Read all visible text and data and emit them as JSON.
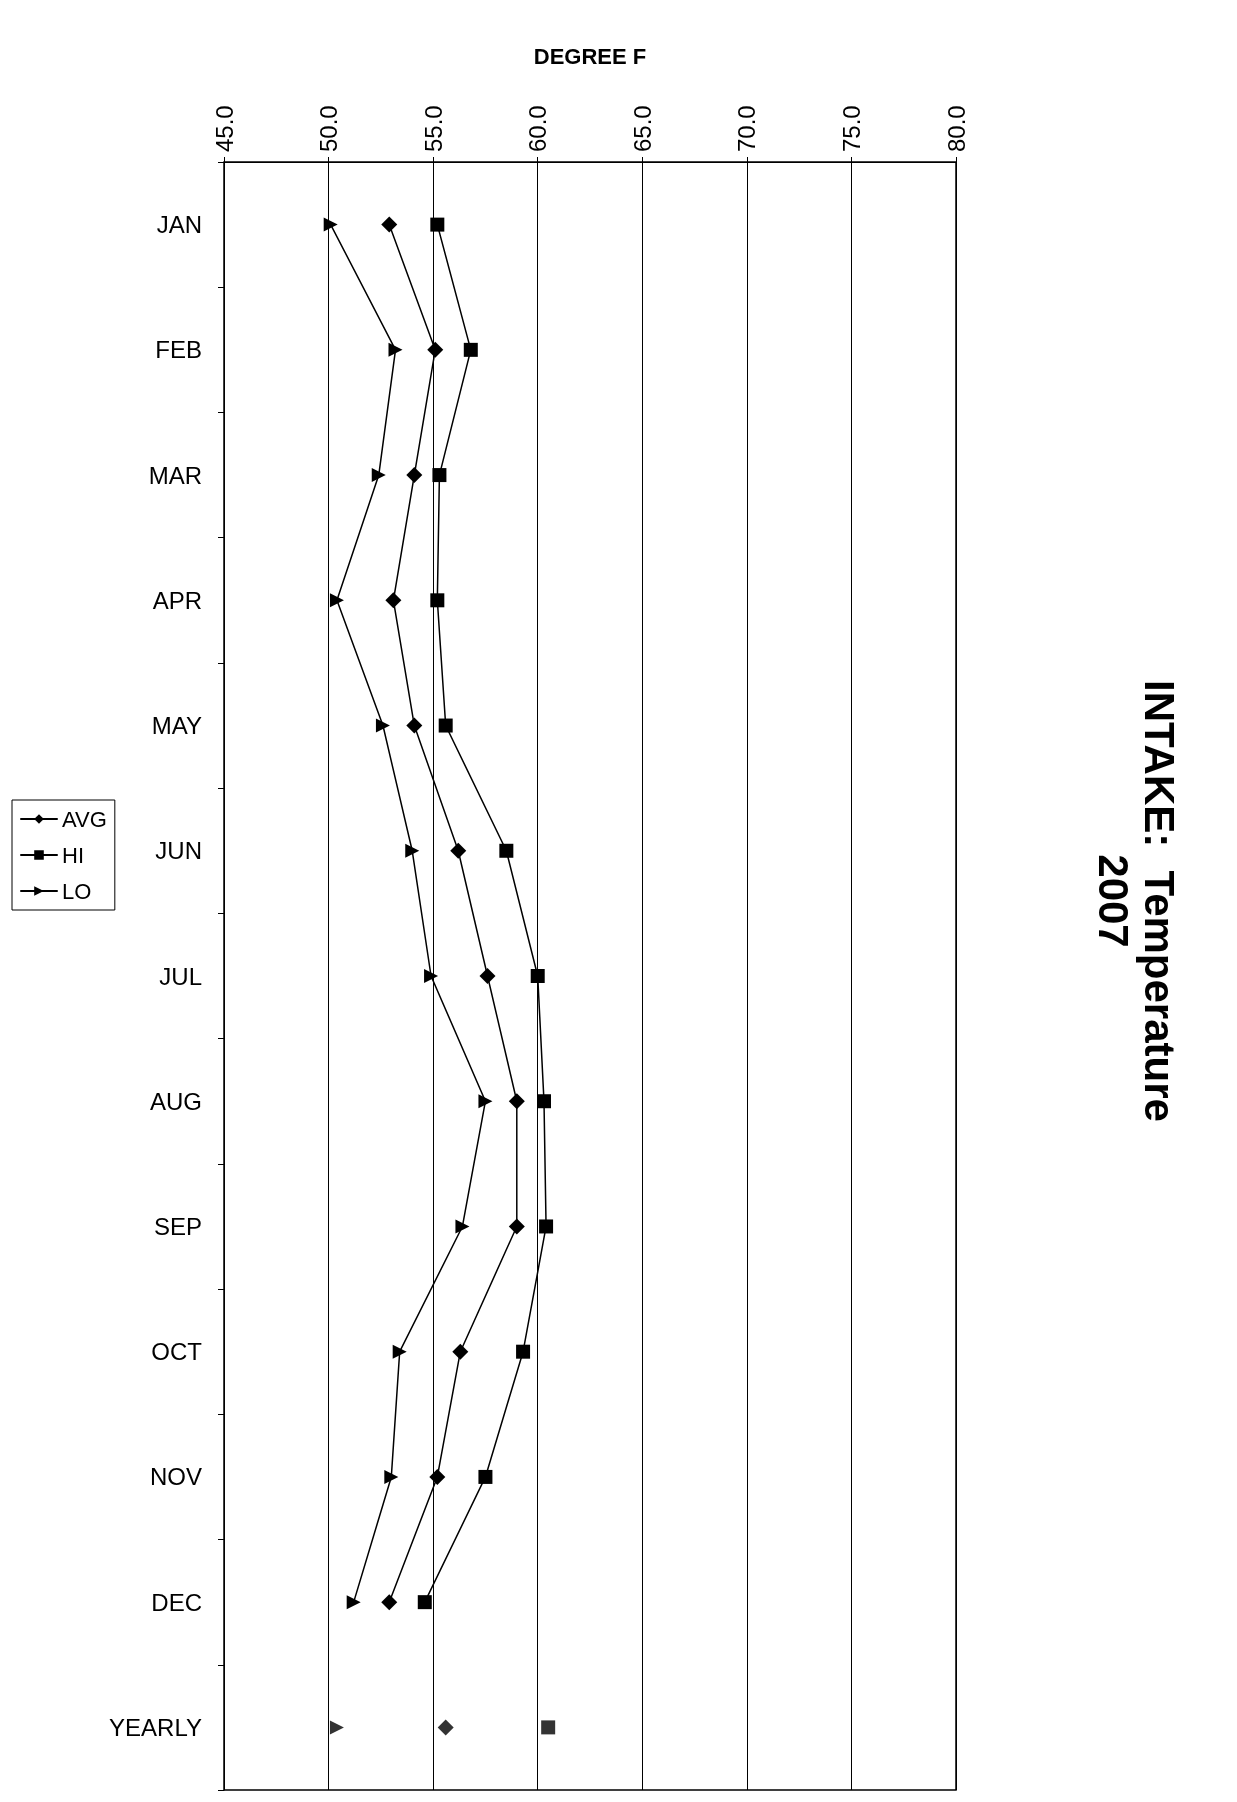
{
  "chart_data": {
    "type": "line",
    "title": "INTAKE:  Temperature\n2007",
    "xlabel": "DEGREE F",
    "orientation": "horizontal",
    "categories": [
      "JAN",
      "FEB",
      "MAR",
      "APR",
      "MAY",
      "JUN",
      "JUL",
      "AUG",
      "SEP",
      "OCT",
      "NOV",
      "DEC",
      "YEARLY"
    ],
    "series": [
      {
        "name": "AVG",
        "color": "#000000",
        "marker": "diamond",
        "values": [
          52.9,
          55.1,
          54.1,
          53.1,
          54.1,
          56.2,
          57.6,
          59.0,
          59.0,
          56.3,
          55.2,
          52.9,
          null
        ]
      },
      {
        "name": "HI",
        "color": "#000000",
        "marker": "square",
        "values": [
          55.2,
          56.8,
          55.3,
          55.2,
          55.6,
          58.5,
          60.0,
          60.3,
          60.4,
          59.3,
          57.5,
          54.6,
          null
        ]
      },
      {
        "name": "LO",
        "color": "#000000",
        "marker": "triangle",
        "values": [
          50.1,
          53.2,
          52.4,
          50.4,
          52.6,
          54.0,
          54.9,
          57.5,
          56.4,
          53.4,
          53.0,
          51.2,
          null
        ]
      },
      {
        "type": "scatter",
        "color": "#000000",
        "marker": "diamond",
        "x": [
          "YEARLY"
        ],
        "values": [
          55.6
        ]
      },
      {
        "type": "scatter",
        "color": "#000000",
        "marker": "square",
        "x": [
          "YEARLY"
        ],
        "values": [
          60.5
        ]
      },
      {
        "type": "scatter",
        "color": "#000000",
        "marker": "triangle",
        "x": [
          "YEARLY"
        ],
        "values": [
          50.4
        ]
      }
    ],
    "xlim": [
      45,
      80
    ],
    "xticks": [
      {
        "value": 45,
        "label": "45.0"
      },
      {
        "value": 50,
        "label": "50.0"
      },
      {
        "value": 55,
        "label": "55.0"
      },
      {
        "value": 60,
        "label": "60.0"
      },
      {
        "value": 65,
        "label": "65.0"
      },
      {
        "value": 70,
        "label": "70.0"
      },
      {
        "value": 75,
        "label": "75.0"
      },
      {
        "value": 80,
        "label": "80.0"
      }
    ],
    "grid": "x",
    "legend": "left",
    "line_style": "solid"
  }
}
